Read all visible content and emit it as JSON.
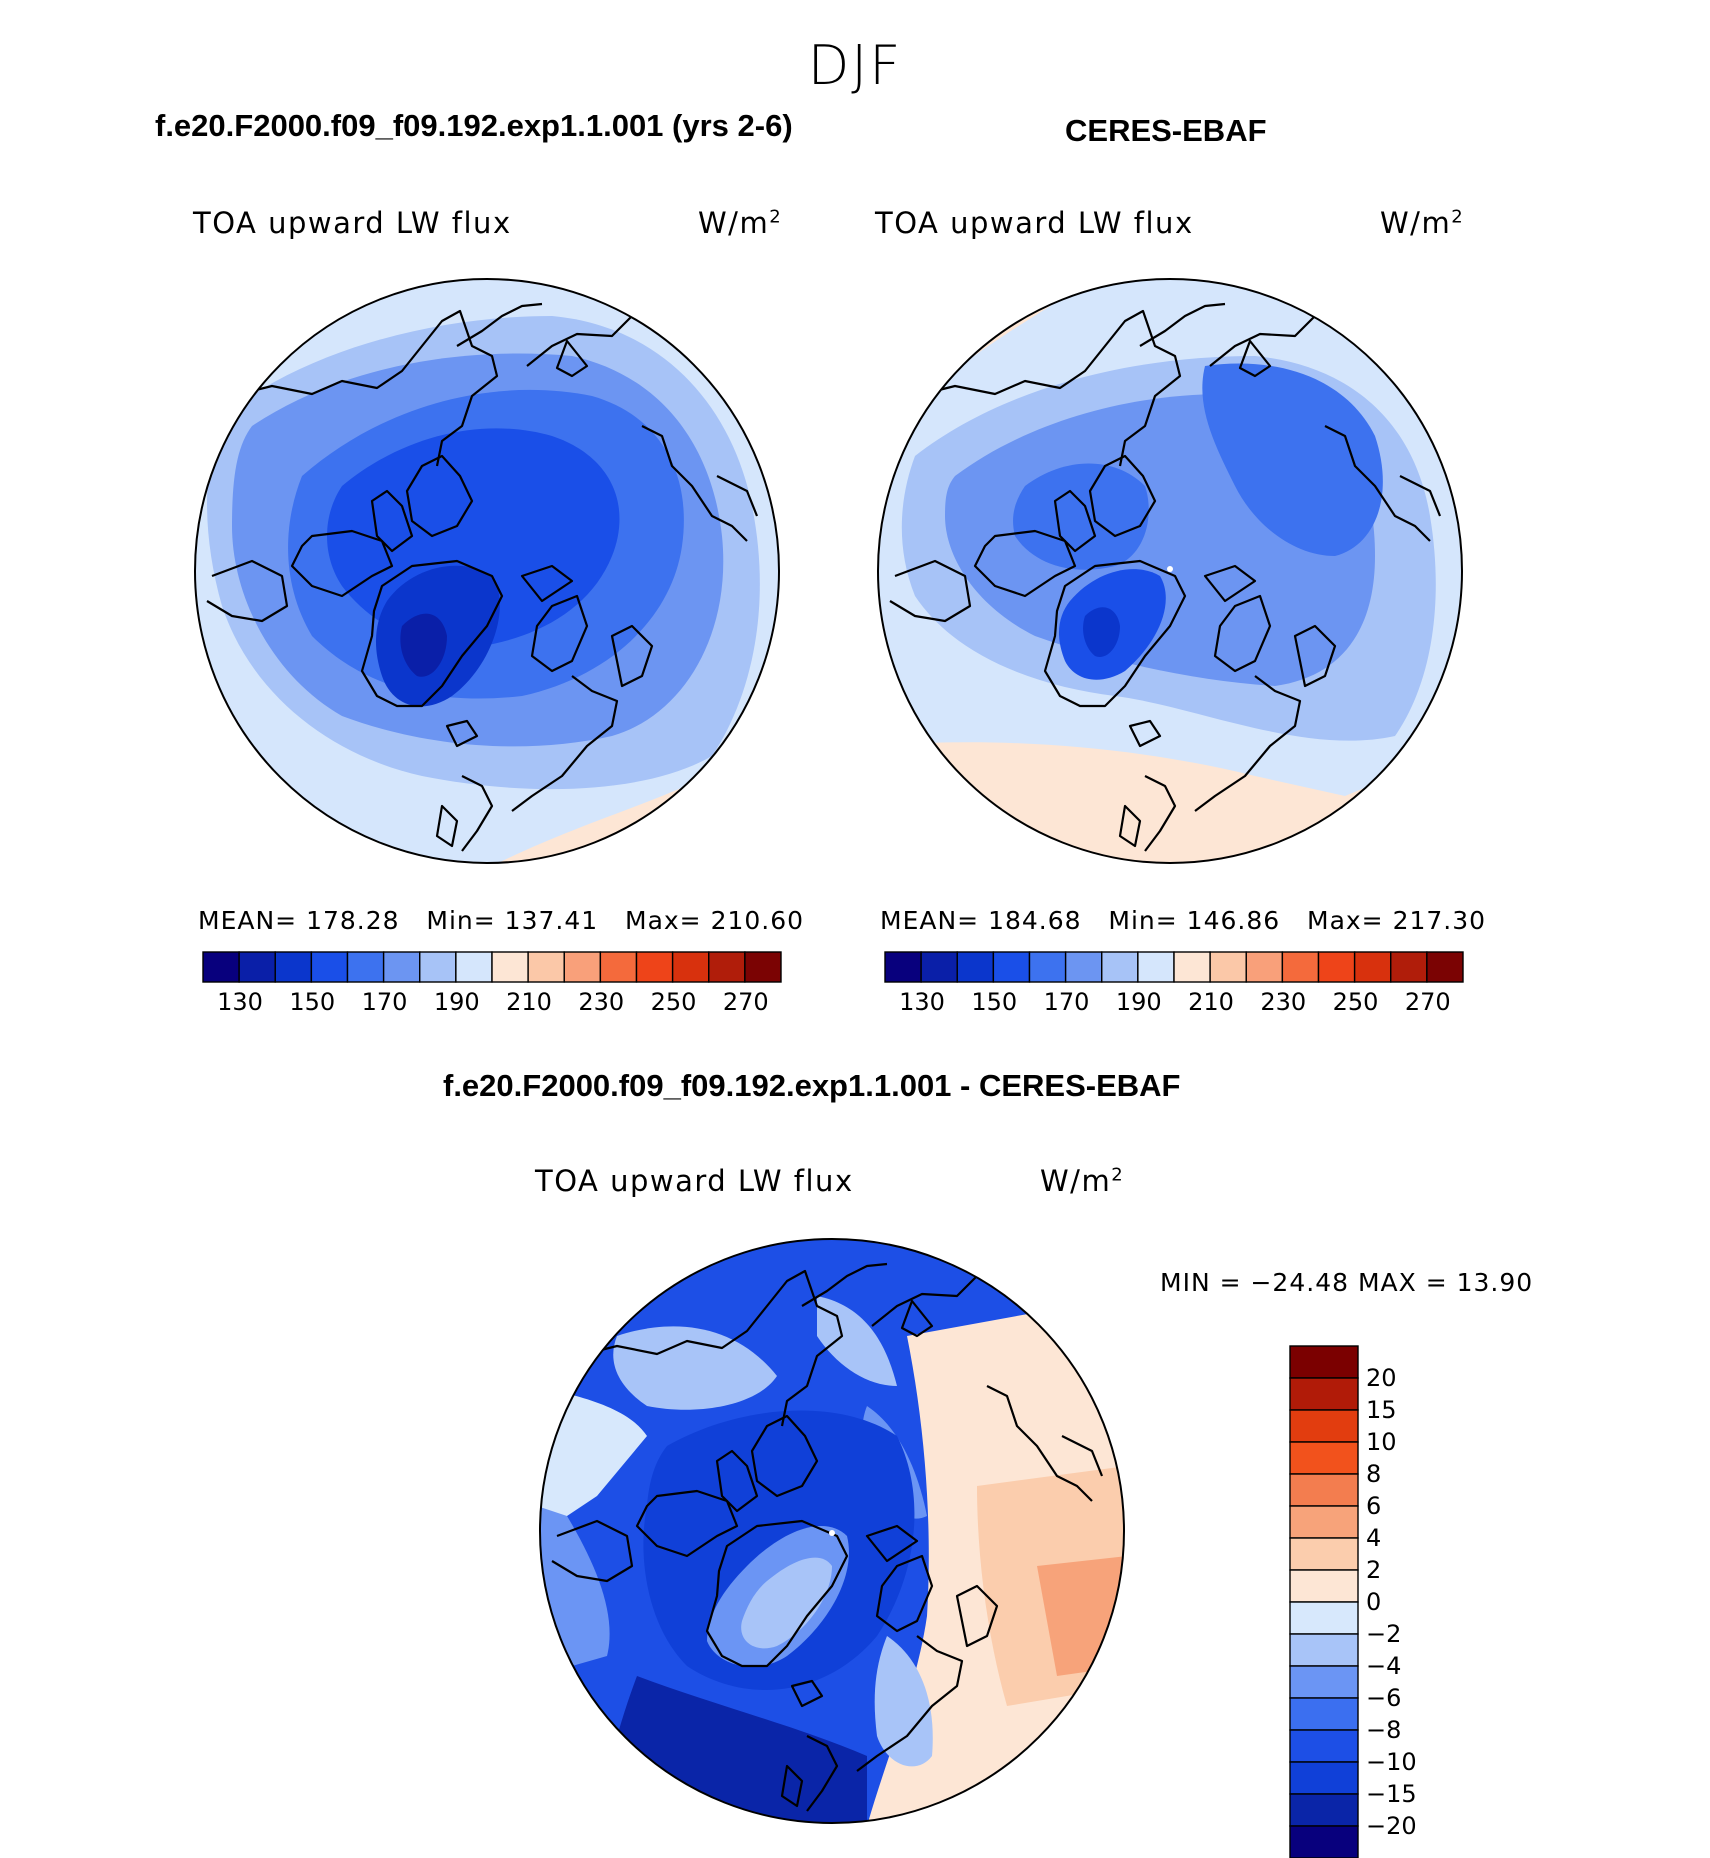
{
  "season": "DJF",
  "colors": {
    "abs_palette": [
      "#08007d",
      "#0a1fa8",
      "#0b36cc",
      "#1a4fe8",
      "#3d72ef",
      "#6c95f2",
      "#a7c3f7",
      "#d5e6fc",
      "#fde6d5",
      "#fbc8a8",
      "#f9a07a",
      "#f46a3c",
      "#ee4419",
      "#d8310d",
      "#b01d0a",
      "#7b0303"
    ],
    "diff_palette": [
      "#08007d",
      "#0a25a8",
      "#1040d8",
      "#1d4fe6",
      "#3b6ff0",
      "#6b95f4",
      "#a8c4f8",
      "#d7e8fc",
      "#fde6d5",
      "#fbcdad",
      "#f7a37a",
      "#f37d4f",
      "#f2521c",
      "#e23d0f",
      "#b11b08",
      "#7b0000"
    ]
  },
  "panels": {
    "model": {
      "title": "f.e20.F2000.f09_f09.192.exp1.1.001 (yrs 2-6)",
      "variable": "TOA upward LW flux",
      "units": "W/m",
      "units_sup": "2",
      "mean_label": "MEAN=",
      "mean": "178.28",
      "min_label": "Min=",
      "min": "137.41",
      "max_label": "Max=",
      "max": "210.60",
      "ticks": [
        "130",
        "150",
        "170",
        "190",
        "210",
        "230",
        "250",
        "270"
      ]
    },
    "obs": {
      "title": "CERES-EBAF",
      "variable": "TOA upward LW flux",
      "units": "W/m",
      "units_sup": "2",
      "mean_label": "MEAN=",
      "mean": "184.68",
      "min_label": "Min=",
      "min": "146.86",
      "max_label": "Max=",
      "max": "217.30",
      "ticks": [
        "130",
        "150",
        "170",
        "190",
        "210",
        "230",
        "250",
        "270"
      ]
    },
    "diff": {
      "title": "f.e20.F2000.f09_f09.192.exp1.1.001 - CERES-EBAF",
      "variable": "TOA upward LW flux",
      "units": "W/m",
      "units_sup": "2",
      "minmax": "MIN = −24.48 MAX =   13.90",
      "ticks": [
        "20",
        "15",
        "10",
        "8",
        "6",
        "4",
        "2",
        "0",
        "−2",
        "−4",
        "−6",
        "−8",
        "−10",
        "−15",
        "−20"
      ]
    }
  }
}
